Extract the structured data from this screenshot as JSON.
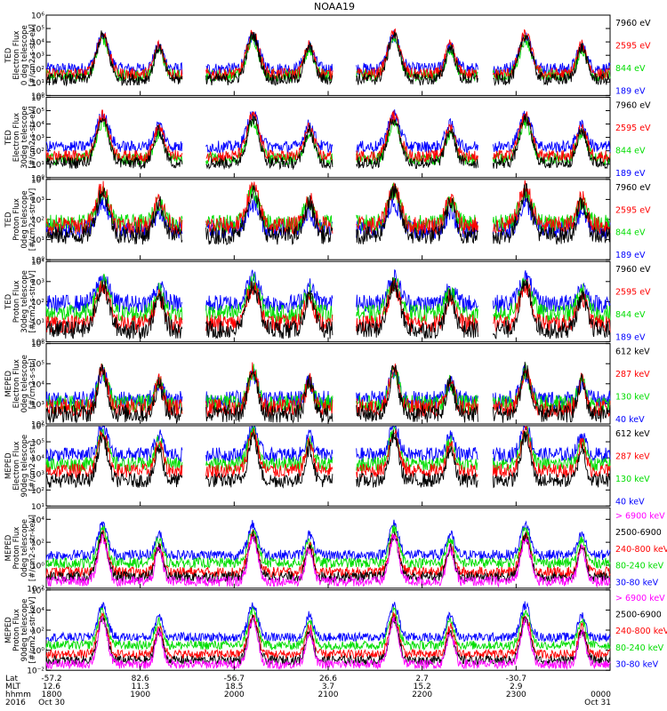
{
  "chart_data": {
    "type": "line",
    "title": "NOAA19",
    "time_span": {
      "start": "1800",
      "end": "0000",
      "unit": "hhmm"
    },
    "panels": [
      {
        "id": "ted-e-0",
        "ylabel": [
          "TED",
          "Electron Flux",
          "0 deg telescope",
          "[#/cm2-s-str-eV]"
        ],
        "ymin_exp": 0,
        "ymax_exp": 6,
        "tick_labels": [
          "10⁶",
          "10⁵",
          "10⁴",
          "10³",
          "10²",
          "10¹",
          "10⁰"
        ],
        "series": [
          {
            "name": "7960 eV",
            "color": "#000000",
            "level": 1.2
          },
          {
            "name": "2595 eV",
            "color": "#ff0000",
            "level": 1.6
          },
          {
            "name": "844 eV",
            "color": "#00dd00",
            "level": 1.5
          },
          {
            "name": "189 eV",
            "color": "#0000ff",
            "level": 2.0
          }
        ]
      },
      {
        "id": "ted-e-30",
        "ylabel": [
          "TED",
          "Electron Flux",
          "30deg telescope",
          "[#/cm2-s-str-eV]"
        ],
        "ymin_exp": 0,
        "ymax_exp": 6,
        "tick_labels": [
          "10⁶",
          "10⁵",
          "10⁴",
          "10³",
          "10²",
          "10¹",
          "10⁰"
        ],
        "series": [
          {
            "name": "7960 eV",
            "color": "#000000",
            "level": 1.1
          },
          {
            "name": "2595 eV",
            "color": "#ff0000",
            "level": 1.6
          },
          {
            "name": "844 eV",
            "color": "#00dd00",
            "level": 1.4
          },
          {
            "name": "189 eV",
            "color": "#0000ff",
            "level": 2.3
          }
        ]
      },
      {
        "id": "ted-p-0",
        "ylabel": [
          "TED",
          "Proton Flux",
          "0deg telescope",
          "[#/cm2-s-str-eV]"
        ],
        "ymin_exp": 0,
        "ymax_exp": 4,
        "tick_labels": [
          "10⁴",
          "10³",
          "10²",
          "10¹",
          "10⁰"
        ],
        "series": [
          {
            "name": "7960 eV",
            "color": "#000000",
            "level": 1.2
          },
          {
            "name": "2595 eV",
            "color": "#ff0000",
            "level": 1.7
          },
          {
            "name": "844 eV",
            "color": "#00dd00",
            "level": 1.8
          },
          {
            "name": "189 eV",
            "color": "#0000ff",
            "level": 1.5
          }
        ]
      },
      {
        "id": "ted-p-30",
        "ylabel": [
          "TED",
          "Proton Flux",
          "30deg telescope",
          "[#/cm2-s-str-eV]"
        ],
        "ymin_exp": 0,
        "ymax_exp": 4,
        "tick_labels": [
          "10⁴",
          "10³",
          "10²",
          "10¹",
          "10⁰"
        ],
        "series": [
          {
            "name": "7960 eV",
            "color": "#000000",
            "level": 0.6
          },
          {
            "name": "2595 eV",
            "color": "#ff0000",
            "level": 0.9
          },
          {
            "name": "844 eV",
            "color": "#00dd00",
            "level": 1.4
          },
          {
            "name": "189 eV",
            "color": "#0000ff",
            "level": 1.9
          }
        ]
      },
      {
        "id": "meped-e-0",
        "ylabel": [
          "MEPED",
          "Electron Flux",
          "0deg telescope",
          "[#/cm2-s-str]"
        ],
        "ymin_exp": 2,
        "ymax_exp": 6,
        "tick_labels": [
          "10⁶",
          "10⁵",
          "10⁴",
          "10³",
          "10²"
        ],
        "series": [
          {
            "name": "612 keV",
            "color": "#000000",
            "level": 2.5
          },
          {
            "name": "287 keV",
            "color": "#ff0000",
            "level": 2.8
          },
          {
            "name": "130 keV",
            "color": "#00dd00",
            "level": 3.0
          },
          {
            "name": "40 keV",
            "color": "#0000ff",
            "level": 3.2
          }
        ]
      },
      {
        "id": "meped-e-90",
        "ylabel": [
          "MEPED",
          "Electron Flux",
          "90deg telescope",
          "[#/cm2-s-str]"
        ],
        "ymin_exp": 1,
        "ymax_exp": 6,
        "tick_labels": [
          "10⁶",
          "10⁵",
          "10⁴",
          "10³",
          "10²",
          "10¹"
        ],
        "series": [
          {
            "name": "612 keV",
            "color": "#000000",
            "level": 2.6
          },
          {
            "name": "287 keV",
            "color": "#ff0000",
            "level": 3.2
          },
          {
            "name": "130 keV",
            "color": "#00dd00",
            "level": 3.6
          },
          {
            "name": "40 keV",
            "color": "#0000ff",
            "level": 4.2
          }
        ]
      },
      {
        "id": "meped-p-0",
        "ylabel": [
          "MEPED",
          "Proton Flux",
          "0deg telescope",
          "[#/cm2-s-str-keV]"
        ],
        "ymin_exp": -2,
        "ymax_exp": 5,
        "tick_labels": [
          "10⁴",
          "10²",
          "10⁰",
          "10⁻²"
        ],
        "tick_exps": [
          4,
          2,
          0,
          -2
        ],
        "series": [
          {
            "name": "> 6900 keV",
            "color": "#ff00ff",
            "level": -1.4
          },
          {
            "name": "2500-6900",
            "color": "#000000",
            "level": -1.0
          },
          {
            "name": "240-800 keV",
            "color": "#ff0000",
            "level": -0.6
          },
          {
            "name": "80-240 keV",
            "color": "#00dd00",
            "level": 0.2
          },
          {
            "name": "30-80 keV",
            "color": "#0000ff",
            "level": 0.9
          }
        ]
      },
      {
        "id": "meped-p-90",
        "ylabel": [
          "MEPED",
          "Proton Flux",
          "90deg telescope",
          "[#/cm2-s-str-keV]"
        ],
        "ymin_exp": -2,
        "ymax_exp": 6,
        "tick_labels": [
          "10⁶",
          "10⁴",
          "10²",
          "10⁰",
          "10⁻²"
        ],
        "tick_exps": [
          6,
          4,
          2,
          0,
          -2
        ],
        "series": [
          {
            "name": "> 6900 keV",
            "color": "#ff00ff",
            "level": -1.4
          },
          {
            "name": "2500-6900",
            "color": "#000000",
            "level": -1.0
          },
          {
            "name": "240-800 keV",
            "color": "#ff0000",
            "level": -0.4
          },
          {
            "name": "80-240 keV",
            "color": "#00dd00",
            "level": 0.5
          },
          {
            "name": "30-80 keV",
            "color": "#0000ff",
            "level": 1.3
          }
        ]
      }
    ],
    "x_axis": {
      "row_labels": [
        "Lat",
        "MLT",
        "hhmm",
        "2016"
      ],
      "ticks": [
        {
          "t": 0.0,
          "lat": "-57.2",
          "mlt": "12.6",
          "hhmm": "1800",
          "date": "Oct 30"
        },
        {
          "t": 1.0,
          "lat": "82.6",
          "mlt": "11.3",
          "hhmm": "1900",
          "date": ""
        },
        {
          "t": 2.0,
          "lat": "-56.7",
          "mlt": "18.5",
          "hhmm": "2000",
          "date": ""
        },
        {
          "t": 3.0,
          "lat": "26.6",
          "mlt": "3.7",
          "hhmm": "2100",
          "date": ""
        },
        {
          "t": 4.0,
          "lat": "2.7",
          "mlt": "15.2",
          "hhmm": "2200",
          "date": ""
        },
        {
          "t": 5.0,
          "lat": "-30.7",
          "mlt": "2.9",
          "hhmm": "2300",
          "date": ""
        },
        {
          "t": 6.0,
          "lat": "",
          "mlt": "",
          "hhmm": "0000",
          "date": "Oct 31"
        }
      ]
    },
    "pass_peaks_hours": [
      0.6,
      2.2,
      3.7,
      5.1
    ],
    "secondary_peaks_hours": [
      1.2,
      2.8,
      4.3,
      5.7
    ]
  }
}
